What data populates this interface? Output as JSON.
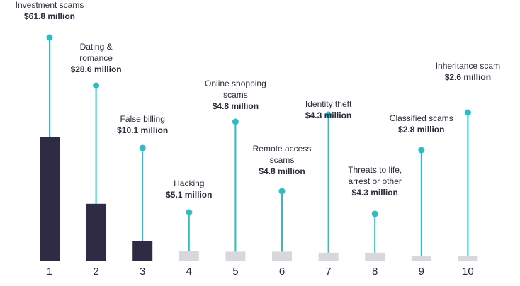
{
  "chart_data": {
    "type": "bar",
    "title": "",
    "xlabel": "",
    "ylabel": "",
    "categories": [
      "1",
      "2",
      "3",
      "4",
      "5",
      "6",
      "7",
      "8",
      "9",
      "10"
    ],
    "values": [
      61.8,
      28.6,
      10.1,
      5.1,
      4.8,
      4.8,
      4.3,
      4.3,
      2.8,
      2.6
    ],
    "ylim": [
      0,
      62
    ],
    "annotations": [
      {
        "name_lines": [
          "Investment scams"
        ],
        "value": "$61.8 million"
      },
      {
        "name_lines": [
          "Dating &",
          "romance"
        ],
        "value": "$28.6 million"
      },
      {
        "name_lines": [
          "False billing"
        ],
        "value": "$10.1 million"
      },
      {
        "name_lines": [
          "Hacking"
        ],
        "value": "$5.1 million"
      },
      {
        "name_lines": [
          "Online shopping",
          "scams"
        ],
        "value": "$4.8 million"
      },
      {
        "name_lines": [
          "Remote access",
          "scams"
        ],
        "value": "$4.8 million"
      },
      {
        "name_lines": [
          "Identity theft"
        ],
        "value": "$4.3 million"
      },
      {
        "name_lines": [
          "Threats to life,",
          "arrest or other"
        ],
        "value": "$4.3 million"
      },
      {
        "name_lines": [
          "Classified scams"
        ],
        "value": "$2.8 million"
      },
      {
        "name_lines": [
          "Inheritance scam"
        ],
        "value": "$2.6 million"
      }
    ],
    "colors": {
      "top_bars": "#2f2b45",
      "other_bars": "#d8d7dc",
      "pin": "#2bbcc4",
      "text": "#2a2a3e"
    },
    "highlighted_count": 3,
    "grid": false,
    "legend": "none"
  }
}
